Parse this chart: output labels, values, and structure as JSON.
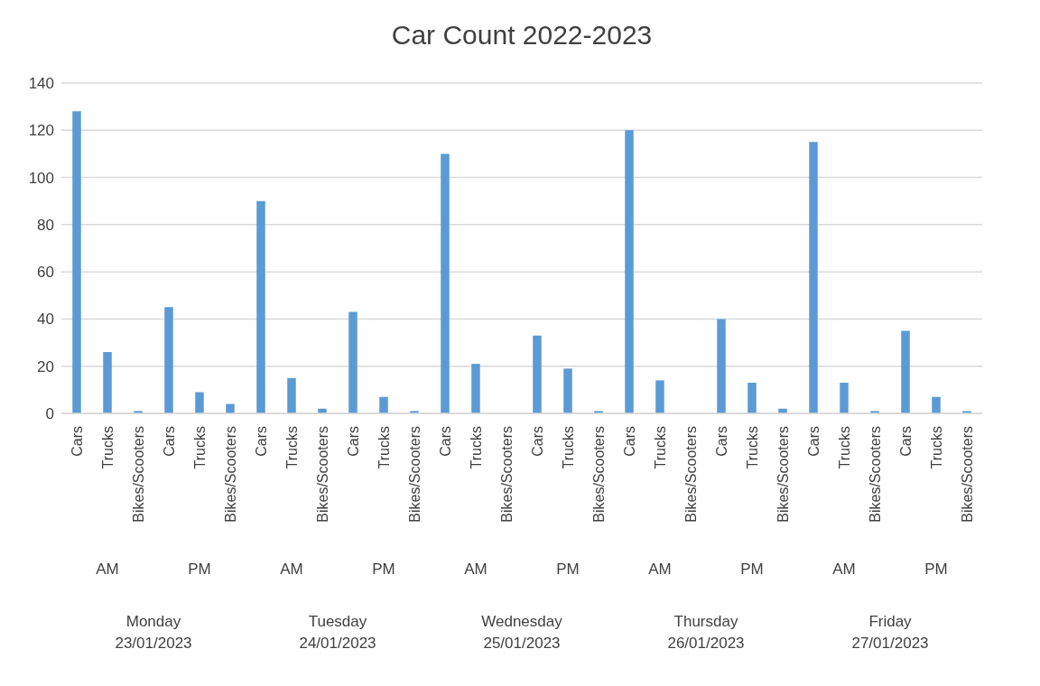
{
  "chart_data": {
    "type": "bar",
    "title": "Car Count 2022-2023",
    "categories": [
      "Cars",
      "Trucks",
      "Bikes/Scooters",
      "Cars",
      "Trucks",
      "Bikes/Scooters",
      "Cars",
      "Trucks",
      "Bikes/Scooters",
      "Cars",
      "Trucks",
      "Bikes/Scooters",
      "Cars",
      "Trucks",
      "Bikes/Scooters",
      "Cars",
      "Trucks",
      "Bikes/Scooters",
      "Cars",
      "Trucks",
      "Bikes/Scooters",
      "Cars",
      "Trucks",
      "Bikes/Scooters",
      "Cars",
      "Trucks",
      "Bikes/Scooters",
      "Cars",
      "Trucks",
      "Bikes/Scooters"
    ],
    "values": [
      128,
      26,
      1,
      45,
      9,
      4,
      90,
      15,
      2,
      43,
      7,
      1,
      110,
      21,
      0,
      33,
      19,
      1,
      120,
      14,
      0,
      40,
      13,
      2,
      115,
      13,
      1,
      35,
      7,
      1
    ],
    "color": "#5b9bd5",
    "ylim": [
      0,
      140
    ],
    "yticks": [
      0,
      20,
      40,
      60,
      80,
      100,
      120,
      140
    ],
    "grid": "y",
    "annotations": [
      "AM",
      "PM",
      "AM",
      "PM",
      "AM",
      "PM",
      "AM",
      "PM",
      "AM",
      "PM",
      "Monday 23/01/2023",
      "Tuesday 24/01/2023",
      "Wednesday 25/01/2023",
      "Thursday 26/01/2023",
      "Friday 27/01/2023"
    ]
  }
}
